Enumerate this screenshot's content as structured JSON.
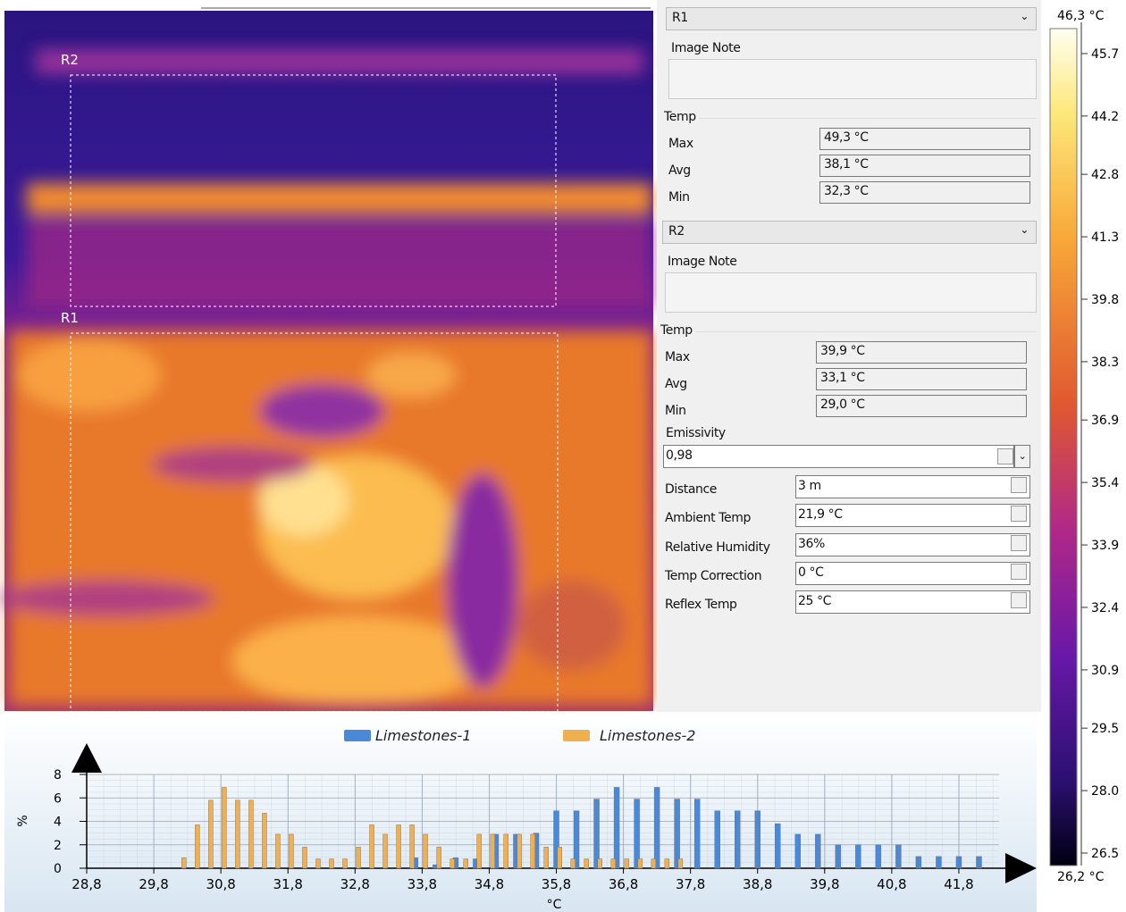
{
  "image": {
    "regions": [
      "R2",
      "R1"
    ]
  },
  "panel": {
    "r1": {
      "name": "R1",
      "note_label": "Image Note",
      "temp_label": "Temp",
      "rows": [
        [
          "Max",
          "49,3 °C"
        ],
        [
          "Avg",
          "38,1 °C"
        ],
        [
          "Min",
          "32,3 °C"
        ]
      ]
    },
    "r2": {
      "name": "R2",
      "note_label": "Image Note",
      "temp_label": "Temp",
      "rows": [
        [
          "Max",
          "39,9 °C"
        ],
        [
          "Avg",
          "33,1 °C"
        ],
        [
          "Min",
          "29,0 °C"
        ]
      ]
    },
    "emissivity": {
      "label": "Emissivity",
      "value": "0,98"
    },
    "parameters": [
      [
        "Distance",
        "3 m"
      ],
      [
        "Ambient Temp",
        "21,9 °C"
      ],
      [
        "Relative Humidity",
        "36%"
      ],
      [
        "Temp Correction",
        "0 °C"
      ],
      [
        "Reflex Temp",
        "25 °C"
      ]
    ]
  },
  "color_scale": {
    "max_label": "46,3 °C",
    "min_label": "26,2 °C",
    "clim": [
      26.2,
      46.3
    ],
    "ticks": [
      45.7,
      44.2,
      42.8,
      41.3,
      39.8,
      38.3,
      36.9,
      35.4,
      33.9,
      32.4,
      30.9,
      29.5,
      {
        "value": 28,
        "label": "28.0"
      },
      26.5
    ]
  },
  "chart_data": {
    "type": "bar",
    "xlabel": "°C",
    "ylabel": "%",
    "xlim": [
      28.8,
      42.4
    ],
    "ylim": [
      0,
      8
    ],
    "xticks": [
      {
        "value": 28.8,
        "label": "28,8"
      },
      {
        "value": 29.8,
        "label": "29,8"
      },
      {
        "value": 30.8,
        "label": "30,8"
      },
      {
        "value": 31.8,
        "label": "31,8"
      },
      {
        "value": 32.8,
        "label": "32,8"
      },
      {
        "value": 33.8,
        "label": "33,8"
      },
      {
        "value": 34.8,
        "label": "34,8"
      },
      {
        "value": 35.8,
        "label": "35,8"
      },
      {
        "value": 36.8,
        "label": "36,8"
      },
      {
        "value": 37.8,
        "label": "37,8"
      },
      {
        "value": 38.8,
        "label": "38,8"
      },
      {
        "value": 39.8,
        "label": "39,8"
      },
      {
        "value": 40.8,
        "label": "40,8"
      },
      {
        "value": 41.8,
        "label": "41,8"
      }
    ],
    "yticks": [
      0,
      2,
      4,
      6,
      8
    ],
    "grid": true,
    "legend": "top",
    "series": [
      {
        "name": "Limestones-1",
        "color": "#4a88d8",
        "x": [
          33.7,
          34.0,
          34.3,
          34.6,
          34.9,
          35.2,
          35.5,
          35.8,
          36.1,
          36.4,
          36.7,
          37.0,
          37.3,
          37.6,
          37.9,
          38.2,
          38.5,
          38.8,
          39.1,
          39.4,
          39.7,
          40.0,
          40.3,
          40.6,
          40.9,
          41.2,
          41.5,
          41.8,
          42.1
        ],
        "values": [
          0.9,
          0.3,
          0.9,
          0.8,
          2.9,
          2.9,
          3.0,
          4.9,
          4.9,
          5.9,
          6.9,
          5.9,
          6.9,
          5.9,
          5.9,
          4.9,
          4.9,
          4.9,
          3.8,
          2.9,
          2.9,
          2.0,
          2.0,
          2.0,
          2.0,
          1.0,
          1.0,
          1.0,
          1.0
        ]
      },
      {
        "name": "Limestones-2",
        "color": "#f0b050",
        "x": [
          30.25,
          30.45,
          30.65,
          30.85,
          31.05,
          31.25,
          31.45,
          31.65,
          31.85,
          32.05,
          32.25,
          32.45,
          32.65,
          32.85,
          33.05,
          33.25,
          33.45,
          33.65,
          33.85,
          34.05,
          34.25,
          34.45,
          34.65,
          34.85,
          35.05,
          35.25,
          35.45,
          35.65,
          35.85,
          36.05,
          36.25,
          36.45,
          36.65,
          36.85,
          37.05,
          37.25,
          37.45,
          37.65
        ],
        "values": [
          0.9,
          3.7,
          5.8,
          6.9,
          5.8,
          5.8,
          4.7,
          2.9,
          2.9,
          1.8,
          0.8,
          0.8,
          0.8,
          1.8,
          3.7,
          2.9,
          3.7,
          3.7,
          2.9,
          1.8,
          0.8,
          0.8,
          2.9,
          2.9,
          2.9,
          2.9,
          2.9,
          1.8,
          1.8,
          0.8,
          0.8,
          0.8,
          0.8,
          0.8,
          0.8,
          0.8,
          0.8,
          0.8
        ]
      }
    ]
  }
}
